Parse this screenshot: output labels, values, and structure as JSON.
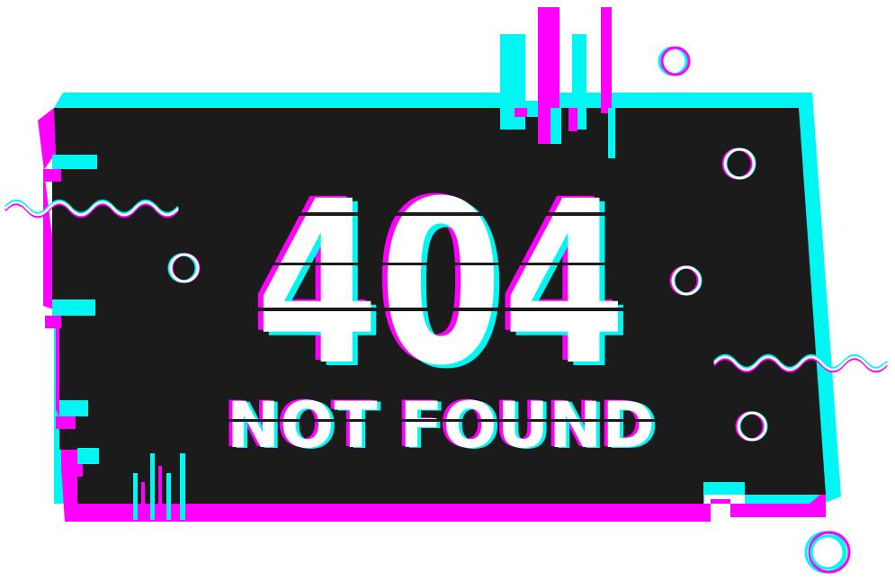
{
  "error": {
    "code": "404",
    "message": "NOT FOUND"
  },
  "colors": {
    "background": "#ffffff",
    "panel": "#1b1b1b",
    "cyan": "#00f6f2",
    "magenta": "#ff00ff",
    "text": "#ffffff"
  }
}
